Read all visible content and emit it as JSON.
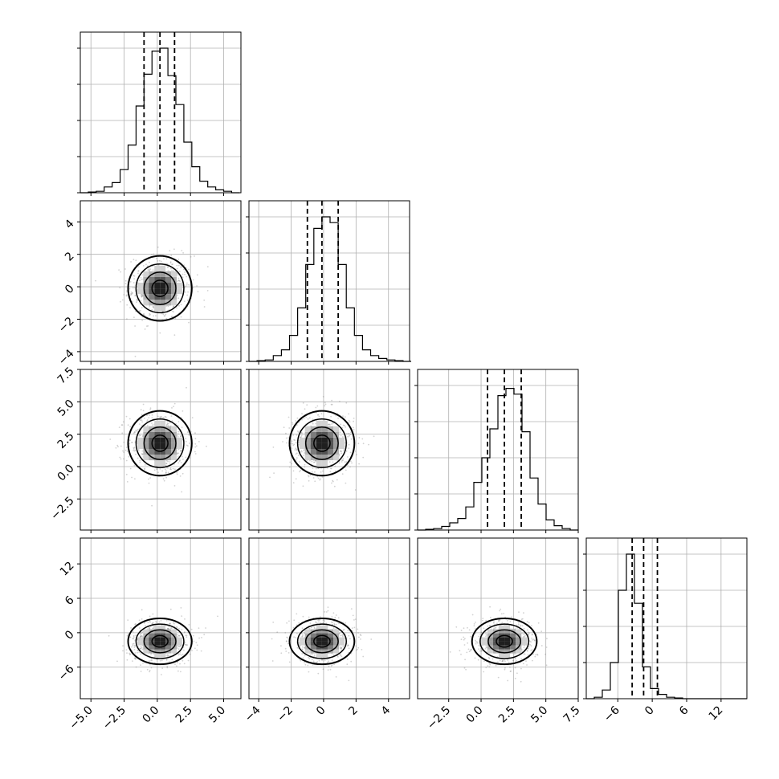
{
  "chart_data": {
    "type": "corner",
    "n_params": 4,
    "title": "",
    "xlabels": [
      "",
      "",
      "",
      ""
    ],
    "ylabels": [
      "",
      "",
      "",
      ""
    ],
    "grid": true,
    "colors": {
      "line": "#000000",
      "grid": "#b0b0b0",
      "scatter": "#7f7f7f",
      "fill": "#000000"
    },
    "params": [
      {
        "range": [
          -5.8,
          6.3
        ],
        "ticks": [
          -5.0,
          -2.5,
          0.0,
          2.5,
          5.0
        ],
        "tick_labels": [
          "−5.0",
          "−2.5",
          "0.0",
          "2.5",
          "5.0"
        ],
        "mean": 0.2,
        "sd": 1.2,
        "quantiles": [
          -1.0,
          0.2,
          1.3
        ],
        "hist_bin_start": -5.8,
        "hist_bin_width": 0.6,
        "hist_rel": [
          0.0,
          0.005,
          0.01,
          0.04,
          0.07,
          0.16,
          0.33,
          0.6,
          0.82,
          0.98,
          1.0,
          0.81,
          0.61,
          0.35,
          0.18,
          0.08,
          0.04,
          0.02,
          0.01,
          0.0
        ]
      },
      {
        "range": [
          -4.6,
          5.3
        ],
        "ticks": [
          -4,
          -2,
          0,
          2,
          4
        ],
        "tick_labels": [
          "−4",
          "−2",
          "0",
          "2",
          "4"
        ],
        "mean": -0.1,
        "sd": 1.0,
        "quantiles": [
          -1.0,
          -0.1,
          0.9
        ],
        "hist_bin_start": -4.6,
        "hist_bin_width": 0.5,
        "hist_rel": [
          0.0,
          0.005,
          0.01,
          0.04,
          0.08,
          0.18,
          0.37,
          0.67,
          0.92,
          1.0,
          0.96,
          0.67,
          0.37,
          0.18,
          0.08,
          0.04,
          0.02,
          0.01,
          0.005,
          0.0
        ]
      },
      {
        "range": [
          -4.9,
          7.5
        ],
        "ticks": [
          -2.5,
          0.0,
          2.5,
          5.0,
          7.5
        ],
        "tick_labels": [
          "−2.5",
          "0.0",
          "2.5",
          "5.0",
          "7.5"
        ],
        "mean": 1.8,
        "sd": 1.25,
        "quantiles": [
          0.5,
          1.8,
          3.1
        ],
        "hist_bin_start": -4.9,
        "hist_bin_width": 0.62,
        "hist_rel": [
          0.0,
          0.005,
          0.01,
          0.025,
          0.05,
          0.08,
          0.16,
          0.33,
          0.5,
          0.7,
          0.93,
          0.98,
          0.94,
          0.68,
          0.36,
          0.18,
          0.07,
          0.03,
          0.01,
          0.0
        ]
      },
      {
        "range": [
          -11.5,
          16.5
        ],
        "ticks": [
          -6,
          0,
          6,
          12
        ],
        "tick_labels": [
          "−6",
          "0",
          "6",
          "12"
        ],
        "mean": -1.5,
        "sd": 2.0,
        "quantiles": [
          -3.5,
          -1.5,
          0.9
        ],
        "hist_bin_start": -11.5,
        "hist_bin_width": 1.4,
        "hist_rel": [
          0.0,
          0.01,
          0.06,
          0.25,
          0.75,
          1.0,
          0.66,
          0.22,
          0.07,
          0.03,
          0.01,
          0.005,
          0.0,
          0.0,
          0.0,
          0.0,
          0.0,
          0.0,
          0.0,
          0.0
        ]
      }
    ],
    "hist_yticks_rel": [
      0.0,
      0.25,
      0.5,
      0.75,
      1.0
    ],
    "contour_levels_sigma": [
      0.5,
      1.0,
      1.5,
      2.0
    ]
  }
}
